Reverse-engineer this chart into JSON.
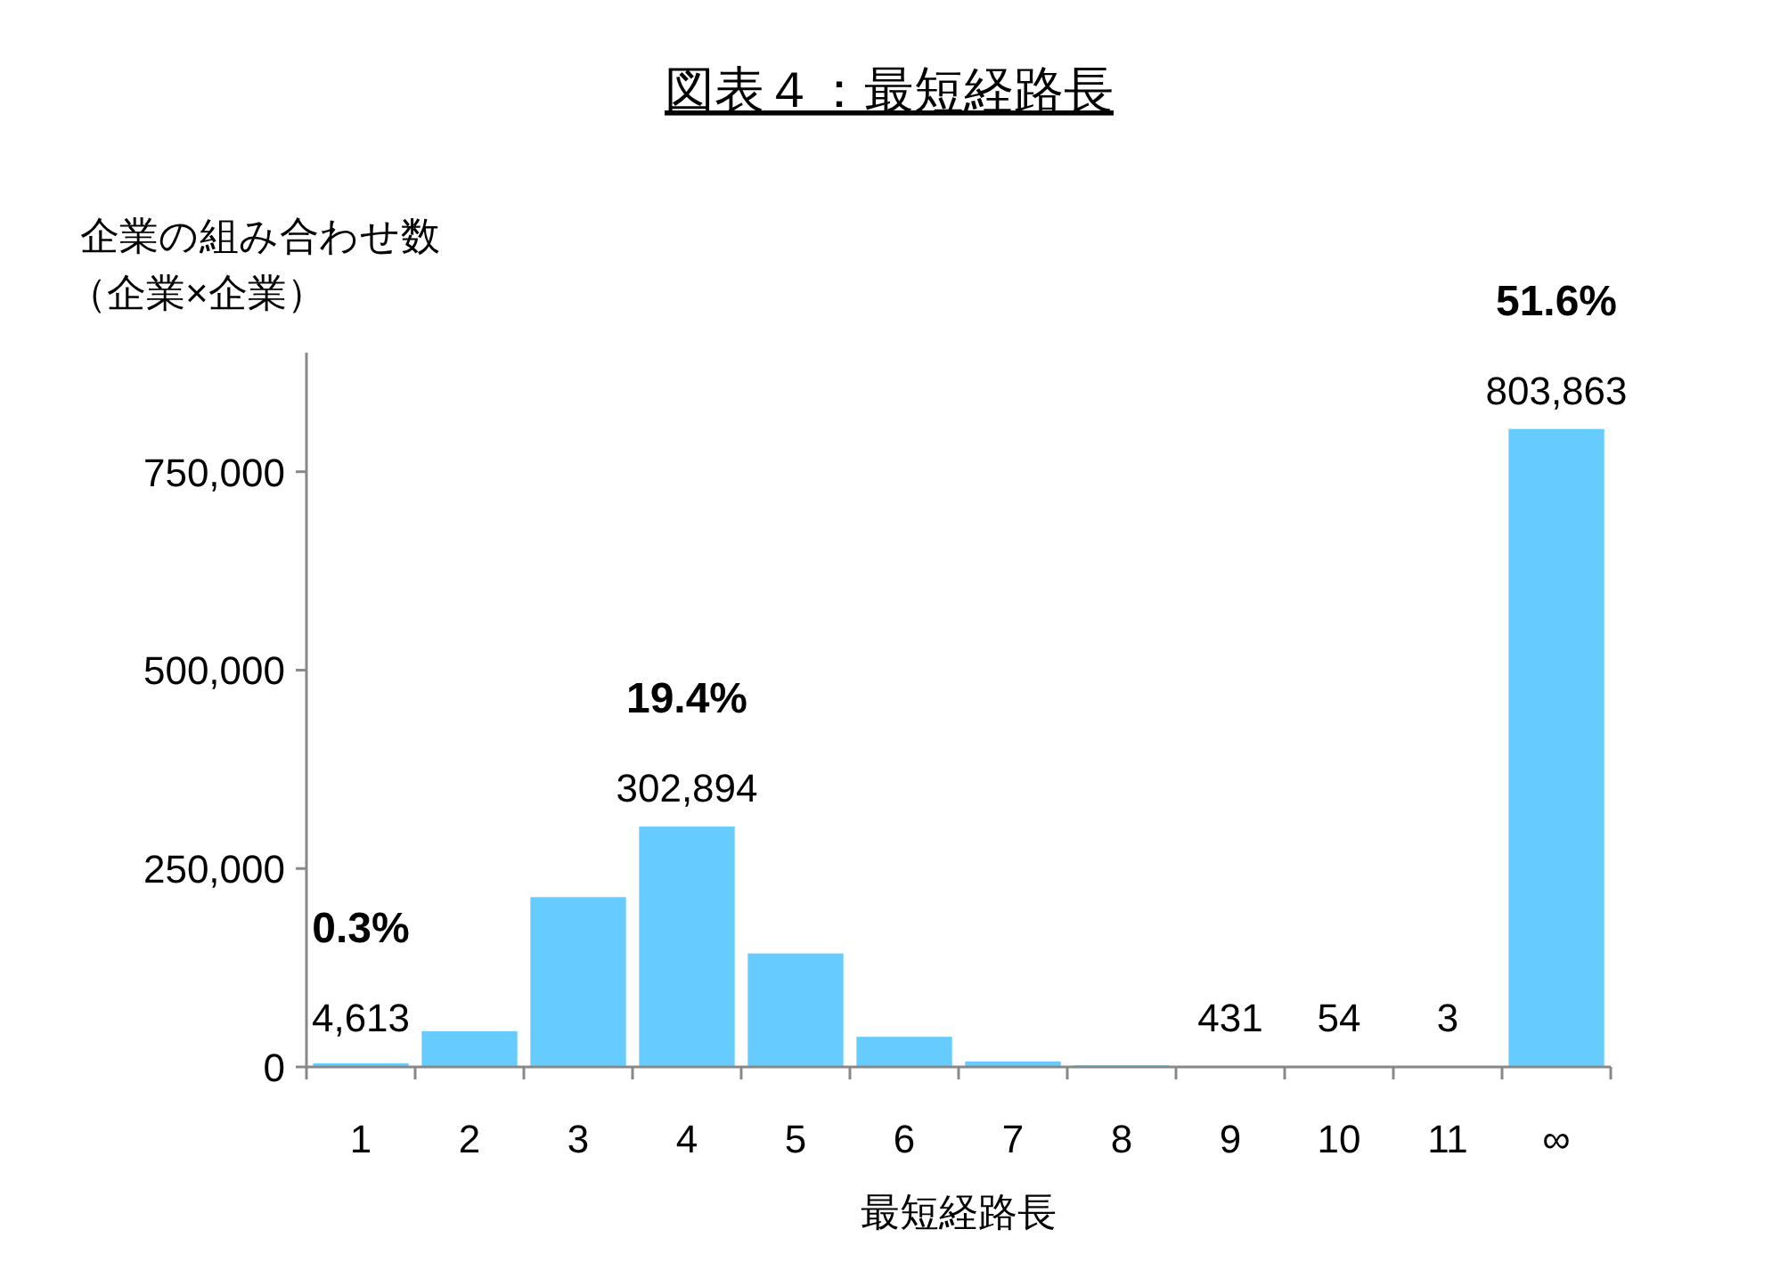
{
  "chart_data": {
    "type": "bar",
    "title": "図表４：最短経路長",
    "xlabel": "最短経路長",
    "ylabel": "企業の組み合わせ数（企業×企業）",
    "categories": [
      "1",
      "2",
      "3",
      "4",
      "5",
      "6",
      "7",
      "8",
      "9",
      "10",
      "11",
      "∞"
    ],
    "values": [
      4613,
      45000,
      214000,
      302894,
      143000,
      38000,
      7000,
      2000,
      431,
      54,
      3,
      803863
    ],
    "color": "#66ccff",
    "value_labels": [
      "4,613",
      null,
      null,
      "302,894",
      null,
      null,
      null,
      null,
      "431",
      "54",
      "3",
      "803,863"
    ],
    "annotations": [
      {
        "text": "0.3%",
        "x": "1",
        "y": 4613
      },
      {
        "text": "19.4%",
        "x": "4",
        "y": 302894
      },
      {
        "text": "51.6%",
        "x": "∞",
        "y": 803863
      }
    ],
    "ylim": [
      0,
      900000
    ],
    "yticks": [
      {
        "value": 0,
        "label": "0"
      },
      {
        "value": 250000,
        "label": "250,000"
      },
      {
        "value": 500000,
        "label": "500,000"
      },
      {
        "value": 750000,
        "label": "750,000"
      }
    ],
    "grid": false
  }
}
